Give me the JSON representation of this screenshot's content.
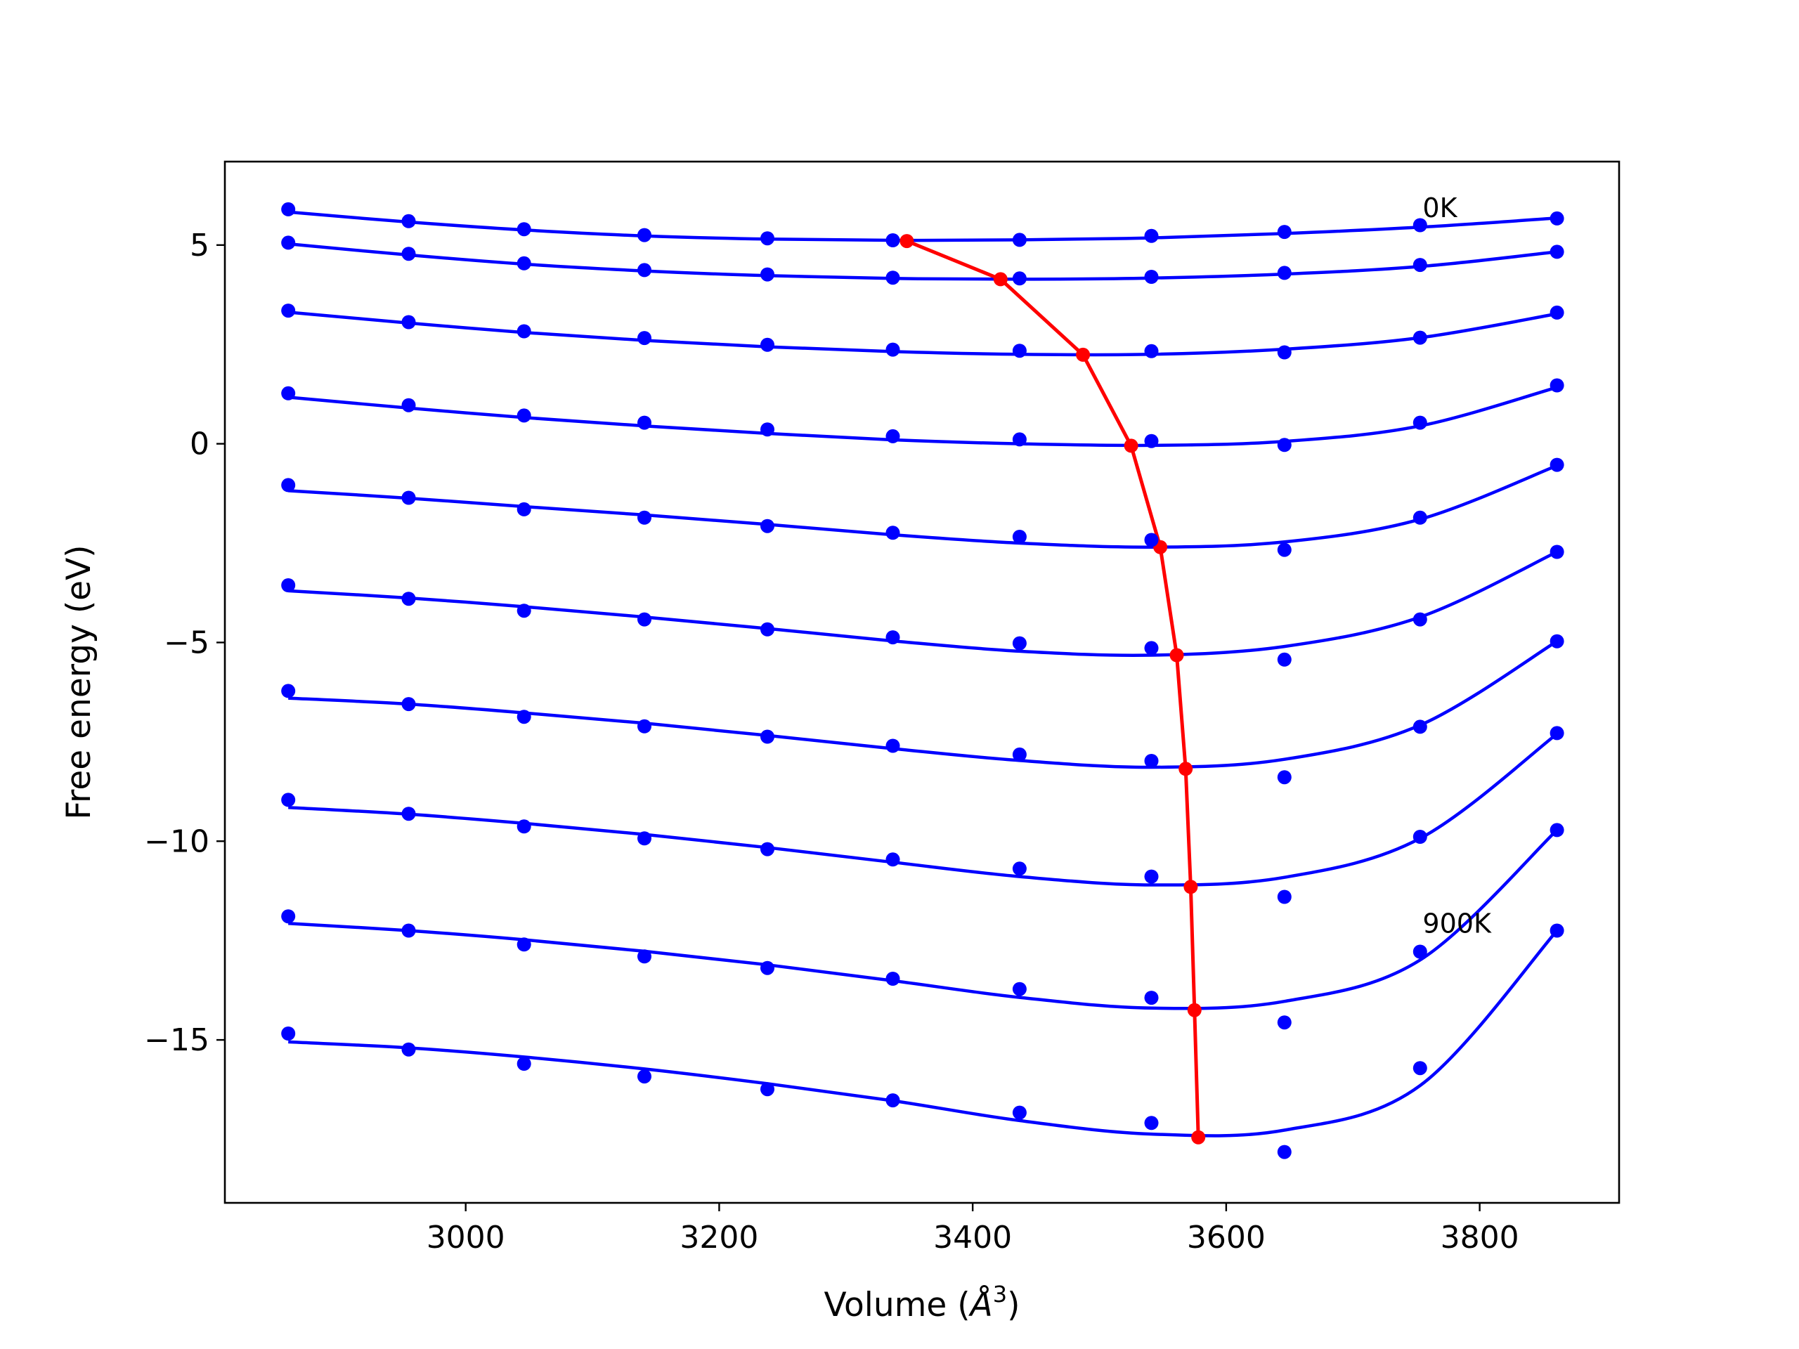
{
  "chart_data": {
    "type": "line",
    "title": "",
    "xlabel": "Volume (",
    "xlabel_symbol": "Å",
    "xlabel_exponent": "3",
    "xlabel_close": ")",
    "ylabel": "Free energy (eV)",
    "xlim": [
      2810,
      3910
    ],
    "ylim": [
      -19.1,
      7.1
    ],
    "x_ticks": [
      3000,
      3200,
      3400,
      3600,
      3800
    ],
    "x_tick_labels": [
      "3000",
      "3200",
      "3400",
      "3600",
      "3800"
    ],
    "y_ticks": [
      5,
      0,
      -5,
      -10,
      -15
    ],
    "y_tick_labels": [
      "5",
      "0",
      "−5",
      "−10",
      "−15"
    ],
    "grid": false,
    "colors": {
      "data": "#0000ff",
      "fit": "#0000ff",
      "minima": "#ff0000"
    },
    "volumes": [
      2860,
      2955,
      3046,
      3141,
      3238,
      3337,
      3437,
      3541,
      3646,
      3753,
      3861
    ],
    "series": [
      {
        "energies": [
          5.9,
          5.6,
          5.4,
          5.25,
          5.17,
          5.12,
          5.13,
          5.23,
          5.33,
          5.5,
          5.67
        ],
        "fit": [
          5.83,
          5.58,
          5.38,
          5.23,
          5.15,
          5.12,
          5.13,
          5.18,
          5.29,
          5.45,
          5.68
        ]
      },
      {
        "energies": [
          5.06,
          4.78,
          4.54,
          4.37,
          4.26,
          4.18,
          4.16,
          4.2,
          4.3,
          4.5,
          4.83
        ],
        "fit": [
          5.03,
          4.75,
          4.52,
          4.35,
          4.23,
          4.16,
          4.14,
          4.17,
          4.27,
          4.46,
          4.83
        ]
      },
      {
        "energies": [
          3.35,
          3.06,
          2.83,
          2.66,
          2.49,
          2.37,
          2.34,
          2.33,
          2.3,
          2.67,
          3.3
        ],
        "fit": [
          3.31,
          3.04,
          2.8,
          2.6,
          2.44,
          2.32,
          2.25,
          2.25,
          2.38,
          2.67,
          3.27
        ]
      },
      {
        "energies": [
          1.27,
          0.97,
          0.71,
          0.53,
          0.36,
          0.19,
          0.11,
          0.07,
          -0.03,
          0.53,
          1.47
        ],
        "fit": [
          1.17,
          0.9,
          0.66,
          0.45,
          0.26,
          0.1,
          0.0,
          -0.04,
          0.06,
          0.45,
          1.42
        ]
      },
      {
        "energies": [
          -1.04,
          -1.36,
          -1.65,
          -1.86,
          -2.07,
          -2.24,
          -2.34,
          -2.42,
          -2.67,
          -1.86,
          -0.53
        ],
        "fit": [
          -1.18,
          -1.37,
          -1.58,
          -1.79,
          -2.03,
          -2.29,
          -2.5,
          -2.6,
          -2.47,
          -1.9,
          -0.55
        ]
      },
      {
        "energies": [
          -3.56,
          -3.9,
          -4.2,
          -4.42,
          -4.67,
          -4.87,
          -5.02,
          -5.14,
          -5.43,
          -4.42,
          -2.72
        ],
        "fit": [
          -3.7,
          -3.88,
          -4.1,
          -4.36,
          -4.65,
          -4.96,
          -5.22,
          -5.32,
          -5.1,
          -4.36,
          -2.72
        ]
      },
      {
        "energies": [
          -6.22,
          -6.55,
          -6.87,
          -7.11,
          -7.37,
          -7.6,
          -7.82,
          -7.98,
          -8.39,
          -7.12,
          -4.97
        ],
        "fit": [
          -6.4,
          -6.55,
          -6.77,
          -7.03,
          -7.34,
          -7.67,
          -7.97,
          -8.14,
          -7.94,
          -7.08,
          -4.97
        ]
      },
      {
        "energies": [
          -8.96,
          -9.31,
          -9.63,
          -9.93,
          -10.2,
          -10.46,
          -10.69,
          -10.89,
          -11.4,
          -9.89,
          -7.28
        ],
        "fit": [
          -9.15,
          -9.32,
          -9.55,
          -9.83,
          -10.16,
          -10.53,
          -10.89,
          -11.1,
          -10.91,
          -9.93,
          -7.3
        ]
      },
      {
        "energies": [
          -11.89,
          -12.25,
          -12.6,
          -12.9,
          -13.19,
          -13.46,
          -13.72,
          -13.94,
          -14.56,
          -12.78,
          -9.72
        ],
        "fit": [
          -12.07,
          -12.25,
          -12.48,
          -12.77,
          -13.11,
          -13.51,
          -13.93,
          -14.2,
          -14.03,
          -12.99,
          -9.72
        ]
      },
      {
        "energies": [
          -14.84,
          -15.24,
          -15.6,
          -15.92,
          -16.24,
          -16.52,
          -16.83,
          -17.09,
          -17.82,
          -15.71,
          -12.25
        ],
        "fit": [
          -15.05,
          -15.2,
          -15.43,
          -15.73,
          -16.1,
          -16.53,
          -17.03,
          -17.37,
          -17.27,
          -16.15,
          -12.25
        ]
      }
    ],
    "minima": [
      {
        "x": 3348,
        "y": 5.1
      },
      {
        "x": 3422,
        "y": 4.14
      },
      {
        "x": 3487,
        "y": 2.24
      },
      {
        "x": 3525,
        "y": -0.05
      },
      {
        "x": 3548,
        "y": -2.6
      },
      {
        "x": 3561,
        "y": -5.32
      },
      {
        "x": 3568,
        "y": -8.18
      },
      {
        "x": 3572,
        "y": -11.15
      },
      {
        "x": 3575,
        "y": -14.25
      },
      {
        "x": 3578,
        "y": -17.45
      }
    ],
    "annotations": [
      {
        "text": "0K",
        "x": 3755,
        "y": 5.7
      },
      {
        "text": "900K",
        "x": 3755,
        "y": -12.3
      }
    ]
  }
}
